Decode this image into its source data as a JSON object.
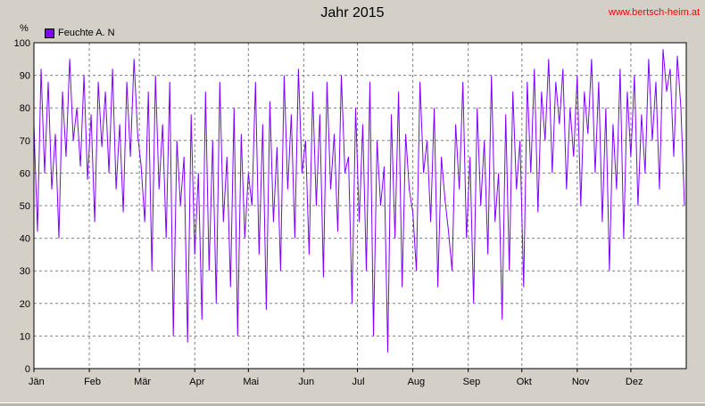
{
  "title": "Jahr 2015",
  "source": "www.bertsch-heim.at",
  "chart_data": {
    "type": "line",
    "ylabel": "%",
    "ylim": [
      0,
      100
    ],
    "yticks": [
      0,
      10,
      20,
      30,
      40,
      50,
      60,
      70,
      80,
      90,
      100
    ],
    "xlim": [
      0,
      365
    ],
    "xticks": [
      {
        "label": "Jän",
        "day": 0
      },
      {
        "label": "Feb",
        "day": 31
      },
      {
        "label": "Mär",
        "day": 59
      },
      {
        "label": "Apr",
        "day": 90
      },
      {
        "label": "Mai",
        "day": 120
      },
      {
        "label": "Jun",
        "day": 151
      },
      {
        "label": "Jul",
        "day": 181
      },
      {
        "label": "Aug",
        "day": 212
      },
      {
        "label": "Sep",
        "day": 243
      },
      {
        "label": "Okt",
        "day": 273
      },
      {
        "label": "Nov",
        "day": 304
      },
      {
        "label": "Dez",
        "day": 334
      }
    ],
    "grid": true,
    "legend": "top-left",
    "series": [
      {
        "name": "Feuchte A. N",
        "color": "#7f00ff",
        "x": [
          0,
          2,
          4,
          6,
          8,
          10,
          12,
          14,
          16,
          18,
          20,
          22,
          24,
          26,
          28,
          30,
          32,
          34,
          36,
          38,
          40,
          42,
          44,
          46,
          48,
          50,
          52,
          54,
          56,
          58,
          60,
          62,
          64,
          66,
          68,
          70,
          72,
          74,
          76,
          78,
          80,
          82,
          84,
          86,
          88,
          90,
          92,
          94,
          96,
          98,
          100,
          102,
          104,
          106,
          108,
          110,
          112,
          114,
          116,
          118,
          120,
          122,
          124,
          126,
          128,
          130,
          132,
          134,
          136,
          138,
          140,
          142,
          144,
          146,
          148,
          150,
          152,
          154,
          156,
          158,
          160,
          162,
          164,
          166,
          168,
          170,
          172,
          174,
          176,
          178,
          180,
          182,
          184,
          186,
          188,
          190,
          192,
          194,
          196,
          198,
          200,
          202,
          204,
          206,
          208,
          210,
          212,
          214,
          216,
          218,
          220,
          222,
          224,
          226,
          228,
          230,
          232,
          234,
          236,
          238,
          240,
          242,
          244,
          246,
          248,
          250,
          252,
          254,
          256,
          258,
          260,
          262,
          264,
          266,
          268,
          270,
          272,
          274,
          276,
          278,
          280,
          282,
          284,
          286,
          288,
          290,
          292,
          294,
          296,
          298,
          300,
          302,
          304,
          306,
          308,
          310,
          312,
          314,
          316,
          318,
          320,
          322,
          324,
          326,
          328,
          330,
          332,
          334,
          336,
          338,
          340,
          342,
          344,
          346,
          348,
          350,
          352,
          354,
          356,
          358,
          360,
          362,
          364
        ],
        "y": [
          75,
          42,
          92,
          60,
          88,
          55,
          72,
          40,
          85,
          65,
          95,
          70,
          80,
          62,
          90,
          58,
          78,
          45,
          88,
          68,
          85,
          60,
          92,
          55,
          75,
          48,
          88,
          65,
          95,
          72,
          62,
          45,
          85,
          30,
          90,
          55,
          75,
          40,
          88,
          10,
          70,
          50,
          65,
          8,
          78,
          35,
          60,
          15,
          85,
          30,
          70,
          20,
          88,
          45,
          65,
          25,
          80,
          10,
          72,
          40,
          60,
          50,
          88,
          35,
          75,
          18,
          82,
          45,
          68,
          30,
          90,
          55,
          78,
          40,
          92,
          60,
          70,
          35,
          85,
          50,
          78,
          28,
          88,
          55,
          72,
          42,
          90,
          60,
          65,
          20,
          80,
          45,
          75,
          30,
          88,
          10,
          70,
          50,
          62,
          5,
          78,
          40,
          85,
          25,
          72,
          55,
          48,
          30,
          88,
          60,
          70,
          45,
          80,
          25,
          65,
          52,
          42,
          30,
          75,
          55,
          88,
          40,
          65,
          20,
          80,
          50,
          70,
          35,
          90,
          45,
          60,
          15,
          78,
          30,
          85,
          55,
          70,
          25,
          88,
          60,
          92,
          48,
          85,
          70,
          95,
          60,
          88,
          75,
          92,
          55,
          80,
          65,
          90,
          50,
          85,
          72,
          95,
          60,
          88,
          45,
          80,
          30,
          75,
          55,
          92,
          40,
          85,
          65,
          90,
          50,
          78,
          60,
          95,
          70,
          88,
          55,
          98,
          85,
          92,
          65,
          96,
          80,
          50
        ]
      }
    ]
  }
}
